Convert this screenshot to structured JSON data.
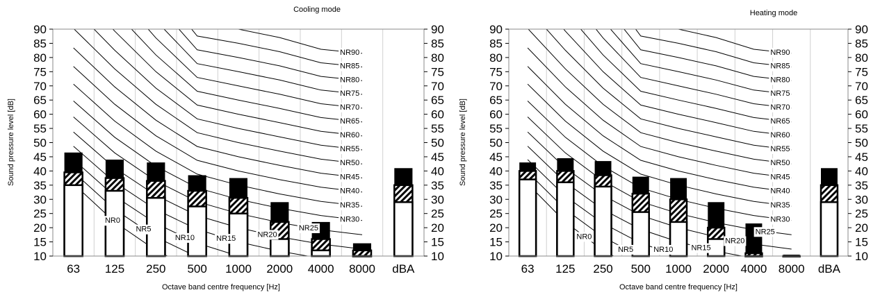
{
  "chart_data": [
    {
      "type": "bar",
      "title": "Cooling mode",
      "xlabel": "Octave band centre frequency [Hz]",
      "ylabel": "Sound pressure level [dB]",
      "ylim": [
        10,
        90
      ],
      "yticks": [
        10,
        15,
        20,
        25,
        30,
        35,
        40,
        45,
        50,
        55,
        60,
        65,
        70,
        75,
        80,
        85,
        90
      ],
      "categories": [
        "63",
        "125",
        "250",
        "500",
        "1000",
        "2000",
        "4000",
        "8000",
        "dBA"
      ],
      "grid": "vertical",
      "series": [
        {
          "style": "open",
          "values": [
            35,
            33,
            30.5,
            27.5,
            25,
            16,
            12,
            10,
            29
          ]
        },
        {
          "style": "hatched",
          "values": [
            39.5,
            37.5,
            36.5,
            33,
            30.5,
            22,
            16,
            12,
            35
          ]
        },
        {
          "style": "solid",
          "values": [
            46.5,
            44,
            43,
            38.5,
            37.5,
            29,
            22,
            14.5,
            41
          ]
        }
      ],
      "nr_labels": [
        "NR0",
        "NR5",
        "NR10",
        "NR15",
        "NR20",
        "NR25",
        "NR30",
        "NR35",
        "NR40",
        "NR45",
        "NR50",
        "NR55",
        "NR60",
        "NR65",
        "NR70",
        "NR75",
        "NR80",
        "NR85",
        "NR90"
      ],
      "nr_values": [
        0,
        5,
        10,
        15,
        20,
        25,
        30,
        35,
        40,
        45,
        50,
        55,
        60,
        65,
        70,
        75,
        80,
        85,
        90
      ]
    },
    {
      "type": "bar",
      "title": "Heating mode",
      "xlabel": "Octave band centre frequency [Hz]",
      "ylabel": "Sound pressure level [dB]",
      "ylim": [
        10,
        90
      ],
      "yticks": [
        10,
        15,
        20,
        25,
        30,
        35,
        40,
        45,
        50,
        55,
        60,
        65,
        70,
        75,
        80,
        85,
        90
      ],
      "categories": [
        "63",
        "125",
        "250",
        "500",
        "1000",
        "2000",
        "4000",
        "8000",
        "dBA"
      ],
      "grid": "vertical",
      "series": [
        {
          "style": "open",
          "values": [
            37,
            36,
            34.5,
            25.5,
            22,
            16,
            10,
            10,
            29
          ]
        },
        {
          "style": "hatched",
          "values": [
            40,
            40,
            38.5,
            32,
            30,
            20,
            11,
            10,
            35
          ]
        },
        {
          "style": "solid",
          "values": [
            43,
            44.5,
            43.5,
            38,
            37.5,
            29,
            21.5,
            10.5,
            41
          ]
        }
      ],
      "nr_labels": [
        "NR0",
        "NR5",
        "NR10",
        "NR15",
        "NR20",
        "NR25",
        "NR30",
        "NR35",
        "NR40",
        "NR45",
        "NR50",
        "NR55",
        "NR60",
        "NR65",
        "NR70",
        "NR75",
        "NR80",
        "NR85",
        "NR90"
      ],
      "nr_values": [
        0,
        5,
        10,
        15,
        20,
        25,
        30,
        35,
        40,
        45,
        50,
        55,
        60,
        65,
        70,
        75,
        80,
        85,
        90
      ]
    }
  ]
}
